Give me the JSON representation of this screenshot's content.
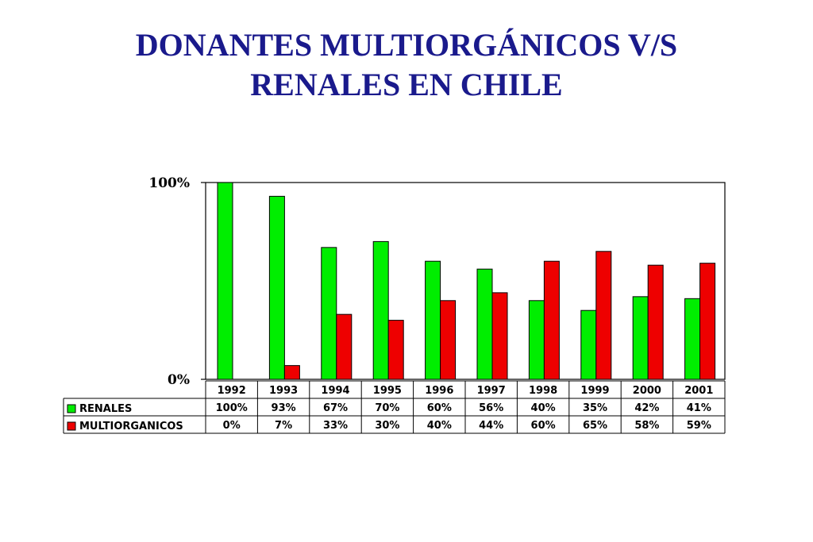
{
  "title": {
    "line1": "DONANTES MULTIORGÁNICOS V/S",
    "line2": "RENALES EN CHILE"
  },
  "colors": {
    "title": "#1a1a8c",
    "renales": "#00ee00",
    "multiorganicos": "#ee0000"
  },
  "chart_data": {
    "type": "bar",
    "categories": [
      "1992",
      "1993",
      "1994",
      "1995",
      "1996",
      "1997",
      "1998",
      "1999",
      "2000",
      "2001"
    ],
    "series": [
      {
        "name": "RENALES",
        "values": [
          100,
          93,
          67,
          70,
          60,
          56,
          40,
          35,
          42,
          41
        ],
        "labels": [
          "100%",
          "93%",
          "67%",
          "70%",
          "60%",
          "56%",
          "40%",
          "35%",
          "42%",
          "41%"
        ]
      },
      {
        "name": "MULTIORGANICOS",
        "values": [
          0,
          7,
          33,
          30,
          40,
          44,
          60,
          65,
          58,
          59
        ],
        "labels": [
          "0%",
          "7%",
          "33%",
          "30%",
          "40%",
          "44%",
          "60%",
          "65%",
          "58%",
          "59%"
        ]
      }
    ],
    "y_ticks": [
      "100%",
      "0%"
    ],
    "ylim": [
      0,
      100
    ],
    "data_table": true,
    "grid": false
  }
}
